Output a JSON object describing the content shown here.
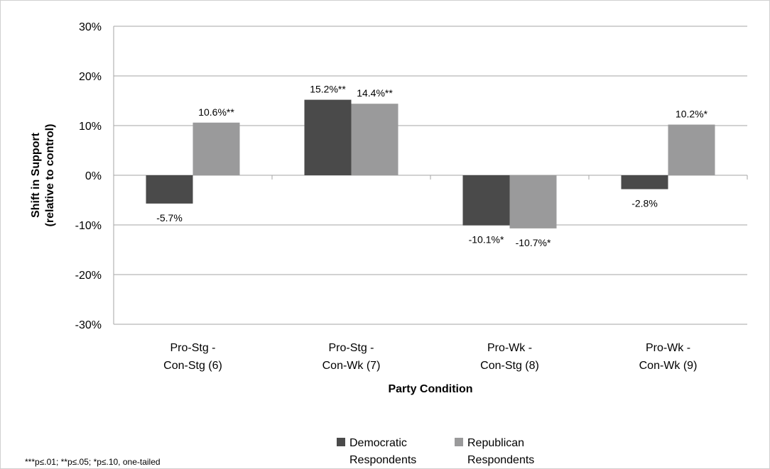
{
  "chart_data": {
    "type": "bar",
    "categories": [
      [
        "Pro-Stg -",
        "Con-Stg (6)"
      ],
      [
        "Pro-Stg -",
        "Con-Wk (7)"
      ],
      [
        "Pro-Wk -",
        "Con-Stg (8)"
      ],
      [
        "Pro-Wk -",
        "Con-Wk (9)"
      ]
    ],
    "series": [
      {
        "name": [
          "Democratic",
          "Respondents"
        ],
        "color": "#4a4a4a",
        "values": [
          -5.7,
          15.2,
          -10.1,
          -2.8
        ],
        "labels": [
          "-5.7%",
          "15.2%**",
          "-10.1%*",
          "-2.8%"
        ]
      },
      {
        "name": [
          "Republican",
          "Respondents"
        ],
        "color": "#9a9a9b",
        "values": [
          10.6,
          14.4,
          -10.7,
          10.2
        ],
        "labels": [
          "10.6%**",
          "14.4%**",
          "-10.7%*",
          "10.2%*"
        ]
      }
    ],
    "ylim": [
      -30,
      30
    ],
    "yticks": [
      30,
      20,
      10,
      0,
      -10,
      -20,
      -30
    ],
    "ytick_labels": [
      "30%",
      "20%",
      "10%",
      "0%",
      "-10%",
      "-20%",
      "-30%"
    ],
    "ylabel": [
      "Shift in Support",
      "(relative to control)"
    ],
    "xlabel": "Party Condition",
    "grid": true,
    "legend_position": "bottom",
    "note": "***p≤.01; **p≤.05; *p≤.10, one-tailed"
  }
}
